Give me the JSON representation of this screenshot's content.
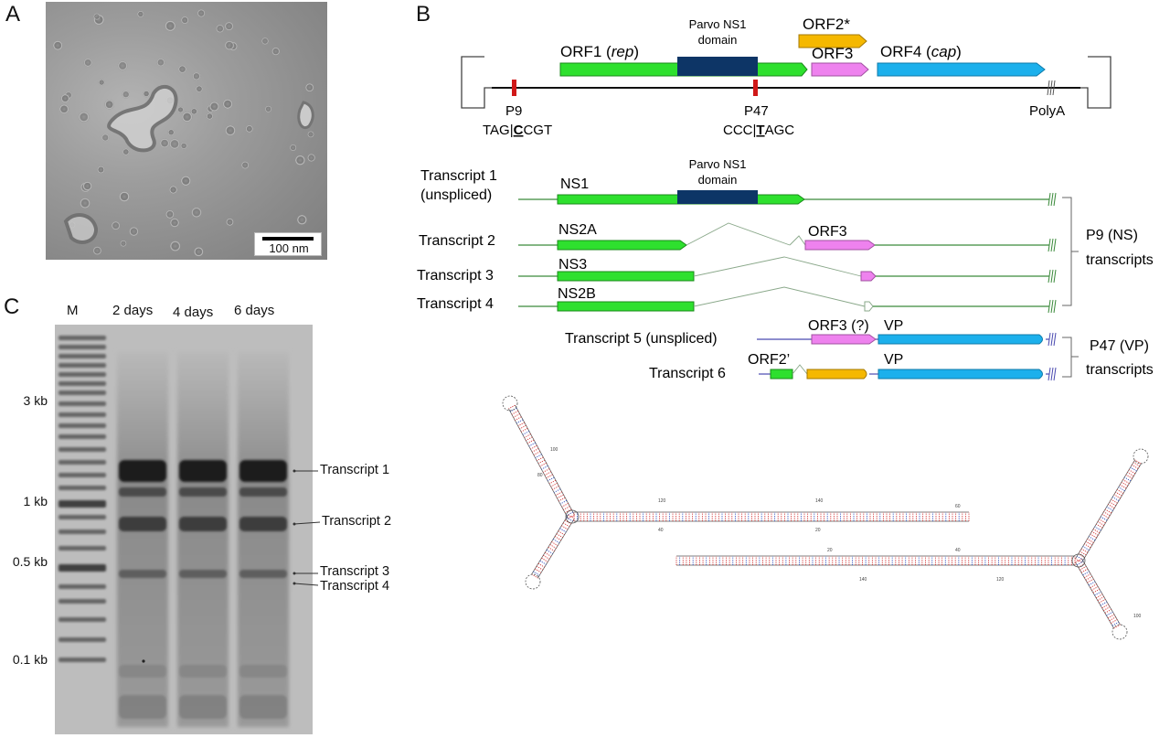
{
  "panels": {
    "a": "A",
    "b": "B",
    "c": "C"
  },
  "em": {
    "scale_label": "100 nm"
  },
  "gel": {
    "lanes": [
      "M",
      "2 days",
      "4 days",
      "6 days"
    ],
    "markers": [
      "3 kb",
      "1 kb",
      "0.5 kb",
      "0.1 kb"
    ],
    "callouts": [
      "Transcript 1",
      "Transcript 2",
      "Transcript 3",
      "Transcript 4"
    ]
  },
  "genome": {
    "orfs": {
      "orf1": "ORF1 (",
      "orf1_italic": "rep",
      "orf1_close": ")",
      "ns1_domain_line1": "Parvo NS1",
      "ns1_domain_line2": "domain",
      "orf2": "ORF2*",
      "orf3": "ORF3",
      "orf4": "ORF4 (",
      "orf4_italic": "cap",
      "orf4_close": ")"
    },
    "promoters": {
      "p9": "P9",
      "p9_seq_a": "TAG|",
      "p9_seq_b": "C",
      "p9_seq_c": "CGT",
      "p47": "P47",
      "p47_seq_a": "CCC|",
      "p47_seq_b": "T",
      "p47_seq_c": "AGC",
      "polya": "PolyA"
    }
  },
  "transcripts": {
    "t1_label_line1": "Transcript 1",
    "t1_label_line2": "(unspliced)",
    "t1_orf": "NS1",
    "t1_domain_line1": "Parvo NS1",
    "t1_domain_line2": "domain",
    "t2_label": "Transcript 2",
    "t2_orf": "NS2A",
    "t2_orf3": "ORF3",
    "t3_label": "Transcript 3",
    "t3_orf": "NS3",
    "t4_label": "Transcript 4",
    "t4_orf": "NS2B",
    "t5_label": "Transcript 5 (unspliced)",
    "t5_orf3": "ORF3 (?)",
    "t5_vp": "VP",
    "t6_label": "Transcript 6",
    "t6_orf2": "ORF2’",
    "t6_vp": "VP",
    "group_ns_line1": "P9 (NS)",
    "group_ns_line2": "transcripts",
    "group_vp_line1": "P47 (VP)",
    "group_vp_line2": "transcripts"
  },
  "structure": {
    "tick_labels": [
      "100",
      "80",
      "120",
      "40",
      "140",
      "20",
      "60",
      "20",
      "40",
      "140",
      "120",
      "100"
    ]
  },
  "colors": {
    "ns1_green": "#2ee02e",
    "domain_navy": "#0d3566",
    "orf2_gold": "#f5b800",
    "orf3_pink": "#ee82ee",
    "cap_blue": "#1cb0ec",
    "promoter_red": "#d01818",
    "ns_line": "#3a8a3a",
    "vp_line": "#4a4ab0"
  }
}
